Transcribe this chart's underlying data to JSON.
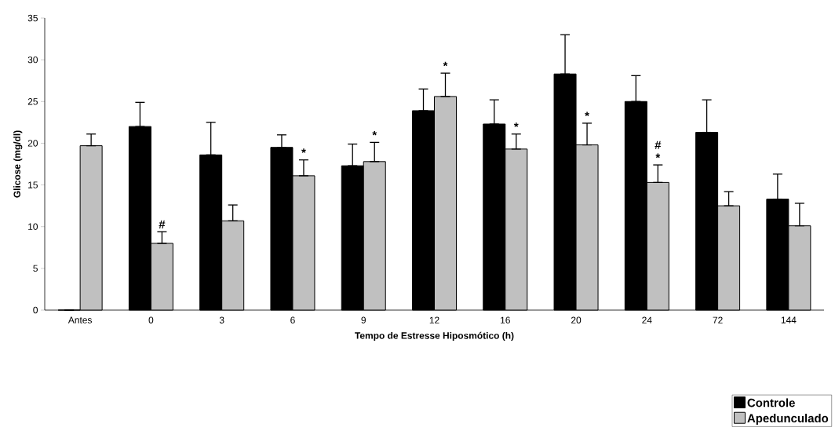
{
  "chart_data": {
    "type": "bar",
    "xlabel": "Tempo de Estresse Hiposmótico (h)",
    "ylabel": "Glicose (mg/dl)",
    "categories": [
      "Antes",
      "0",
      "3",
      "6",
      "9",
      "12",
      "16",
      "20",
      "24",
      "72",
      "144"
    ],
    "series": [
      {
        "name": "Controle",
        "color": "#000000",
        "values": [
          0,
          22.0,
          18.6,
          19.5,
          17.3,
          23.9,
          22.3,
          28.3,
          25.0,
          21.3,
          13.3
        ],
        "errors": [
          null,
          [
            22.0,
            24.9
          ],
          [
            18.6,
            22.5
          ],
          [
            19.5,
            21.0
          ],
          [
            17.3,
            19.9
          ],
          [
            23.9,
            26.5
          ],
          [
            22.3,
            25.2
          ],
          [
            28.3,
            33.0
          ],
          [
            25.0,
            28.1
          ],
          [
            21.3,
            25.2
          ],
          [
            13.3,
            16.3
          ]
        ]
      },
      {
        "name": "Apedunculado",
        "color": "#c0c0c0",
        "values": [
          19.7,
          8.0,
          10.7,
          16.1,
          17.8,
          25.6,
          19.3,
          19.8,
          15.3,
          12.5,
          10.1
        ],
        "errors": [
          [
            19.7,
            21.1
          ],
          [
            8.0,
            9.4
          ],
          [
            10.7,
            12.6
          ],
          [
            16.1,
            18.0
          ],
          [
            17.8,
            20.1
          ],
          [
            25.6,
            28.4
          ],
          [
            19.3,
            21.1
          ],
          [
            19.8,
            22.4
          ],
          [
            15.3,
            17.4
          ],
          [
            12.5,
            14.2
          ],
          [
            10.1,
            12.8
          ]
        ]
      }
    ],
    "ylim": [
      0,
      35
    ],
    "yticks": [
      0,
      5,
      10,
      15,
      20,
      25,
      30,
      35
    ],
    "annotations": [
      {
        "text": "#",
        "x": "0",
        "y": 8.0
      },
      {
        "text": "*",
        "x": "6",
        "y": 16.1
      },
      {
        "text": "*",
        "x": "9",
        "y": 17.8
      },
      {
        "text": "*",
        "x": "12",
        "y": 25.6
      },
      {
        "text": "*",
        "x": "16",
        "y": 19.3
      },
      {
        "text": "*",
        "x": "20",
        "y": 19.8
      },
      {
        "text": "*",
        "x": "24",
        "y": 15.3
      },
      {
        "text": "#",
        "x": "24",
        "y": 15.3
      }
    ],
    "legend": "bottom right",
    "grid": false
  }
}
